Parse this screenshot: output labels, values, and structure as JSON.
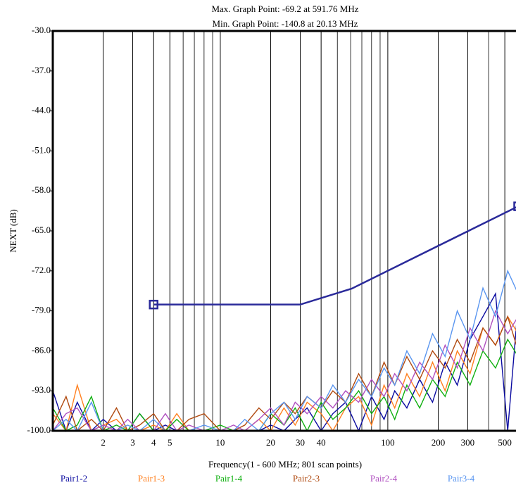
{
  "chart_data": {
    "type": "line",
    "title": "Max. Graph Point: -69.2 at 591.76 MHz",
    "subtitle": "Min. Graph Point: -140.8 at 20.13 MHz",
    "x_label": "Frequency(1 - 600 MHz; 801 scan points)",
    "y_label": "NEXT (dB)",
    "xscale": "log",
    "minor_grid": true,
    "xlim": [
      1,
      600
    ],
    "ylim": [
      -100,
      -30
    ],
    "xticks": [
      2,
      3,
      4,
      5,
      10,
      20,
      30,
      40,
      100,
      200,
      300,
      500
    ],
    "yticks": [
      {
        "value": -30,
        "label": "-30.0"
      },
      {
        "value": -37,
        "label": "-37.0"
      },
      {
        "value": -44,
        "label": "-44.0"
      },
      {
        "value": -51,
        "label": "-51.0"
      },
      {
        "value": -58,
        "label": "-58.0"
      },
      {
        "value": -65,
        "label": "-65.0"
      },
      {
        "value": -72,
        "label": "-72.0"
      },
      {
        "value": -79,
        "label": "-79.0"
      },
      {
        "value": -86,
        "label": "-86.0"
      },
      {
        "value": -93,
        "label": "-93.0"
      },
      {
        "value": -100,
        "label": "-100.0"
      }
    ],
    "x": [
      1,
      1.2,
      1.4,
      1.7,
      2,
      2.4,
      2.8,
      3.3,
      4,
      4.7,
      5.5,
      6.5,
      8,
      10,
      12,
      14,
      17,
      20,
      24,
      28,
      33,
      40,
      47,
      56,
      67,
      80,
      95,
      110,
      130,
      155,
      185,
      220,
      260,
      310,
      370,
      440,
      520,
      600
    ],
    "series": [
      {
        "name": "Pair1-2",
        "color": "#0a0aa0",
        "values": [
          -93,
          -100,
          -95,
          -100,
          -98,
          -100,
          -100,
          -97,
          -100,
          -99,
          -100,
          -100,
          -100,
          -100,
          -100,
          -100,
          -100,
          -99,
          -100,
          -98,
          -96,
          -100,
          -97,
          -95,
          -100,
          -94,
          -98,
          -93,
          -96,
          -91,
          -95,
          -88,
          -92,
          -84,
          -80,
          -76,
          -100,
          -78
        ]
      },
      {
        "name": "Pair1-3",
        "color": "#ff8020",
        "values": [
          -97,
          -100,
          -92,
          -100,
          -99,
          -98,
          -100,
          -100,
          -99,
          -100,
          -97,
          -100,
          -100,
          -100,
          -100,
          -100,
          -98,
          -100,
          -96,
          -99,
          -95,
          -97,
          -100,
          -96,
          -94,
          -99,
          -92,
          -96,
          -90,
          -94,
          -88,
          -93,
          -86,
          -90,
          -82,
          -85,
          -80,
          -83
        ]
      },
      {
        "name": "Pair1-4",
        "color": "#10b010",
        "values": [
          -96,
          -100,
          -99,
          -94,
          -100,
          -99,
          -100,
          -97,
          -100,
          -100,
          -98,
          -100,
          -100,
          -99,
          -100,
          -100,
          -100,
          -97,
          -99,
          -96,
          -100,
          -95,
          -98,
          -96,
          -93,
          -97,
          -94,
          -98,
          -92,
          -96,
          -91,
          -94,
          -88,
          -92,
          -86,
          -89,
          -84,
          -87
        ]
      },
      {
        "name": "Pair2-3",
        "color": "#b04a10",
        "values": [
          -99,
          -94,
          -100,
          -98,
          -100,
          -96,
          -100,
          -99,
          -97,
          -100,
          -100,
          -98,
          -97,
          -100,
          -100,
          -99,
          -96,
          -98,
          -95,
          -97,
          -94,
          -96,
          -93,
          -95,
          -90,
          -94,
          -88,
          -92,
          -87,
          -91,
          -86,
          -89,
          -84,
          -88,
          -82,
          -85,
          -80,
          -86
        ]
      },
      {
        "name": "Pair2-4",
        "color": "#b050c0",
        "values": [
          -100,
          -97,
          -96,
          -100,
          -99,
          -100,
          -98,
          -100,
          -100,
          -97,
          -100,
          -99,
          -100,
          -100,
          -99,
          -100,
          -98,
          -96,
          -99,
          -95,
          -97,
          -94,
          -96,
          -93,
          -95,
          -91,
          -94,
          -90,
          -93,
          -88,
          -91,
          -85,
          -89,
          -82,
          -86,
          -79,
          -83,
          -80
        ]
      },
      {
        "name": "Pair3-4",
        "color": "#5a96f0",
        "values": [
          -100,
          -98,
          -100,
          -95,
          -100,
          -100,
          -99,
          -100,
          -98,
          -100,
          -100,
          -100,
          -99,
          -100,
          -100,
          -98,
          -100,
          -97,
          -95,
          -98,
          -94,
          -96,
          -92,
          -95,
          -91,
          -94,
          -89,
          -92,
          -86,
          -90,
          -83,
          -87,
          -79,
          -84,
          -75,
          -80,
          -72,
          -76
        ]
      }
    ],
    "limit_line": {
      "color": "#2a2a9a",
      "x": [
        4,
        30,
        61,
        600
      ],
      "values": [
        -77.9,
        -77.9,
        -75.1,
        -60.7
      ]
    }
  }
}
